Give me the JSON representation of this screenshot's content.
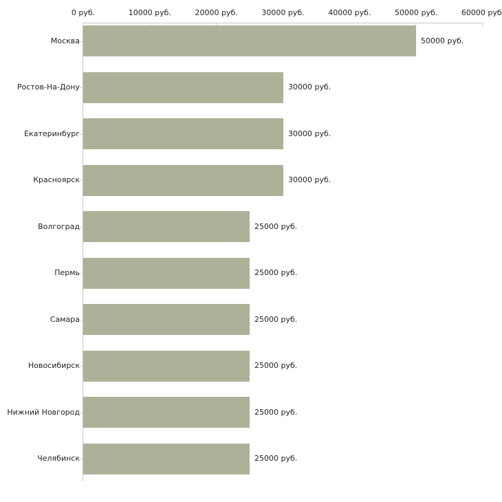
{
  "chart_data": {
    "type": "bar",
    "orientation": "horizontal",
    "title": "",
    "xlabel": "",
    "ylabel": "",
    "categories": [
      "Москва",
      "Ростов-На-Дону",
      "Екатеринбург",
      "Красноярск",
      "Волгоград",
      "Пермь",
      "Самара",
      "Новосибирск",
      "Нижний Новгород",
      "Челябинск"
    ],
    "values": [
      50000,
      30000,
      30000,
      30000,
      25000,
      25000,
      25000,
      25000,
      25000,
      25000
    ],
    "value_labels": [
      "50000 руб.",
      "30000 руб.",
      "30000 руб.",
      "30000 руб.",
      "25000 руб.",
      "25000 руб.",
      "25000 руб.",
      "25000 руб.",
      "25000 руб.",
      "25000 руб."
    ],
    "unit": "руб.",
    "xlim": [
      0,
      60000
    ],
    "x_tick_values": [
      0,
      10000,
      20000,
      30000,
      40000,
      50000,
      60000
    ],
    "x_tick_labels": [
      "0 руб.",
      "10000 руб.",
      "20000 руб.",
      "30000 руб.",
      "40000 руб.",
      "50000 руб.",
      "60000 руб."
    ],
    "grid": false,
    "legend": "none",
    "x_axis_position": "top",
    "colors": {
      "bar": "#abb298",
      "axis_line": "#c6c6c6",
      "axis_tick": "#d4d4aa",
      "text": "#222222",
      "background": "#ffffff"
    }
  }
}
